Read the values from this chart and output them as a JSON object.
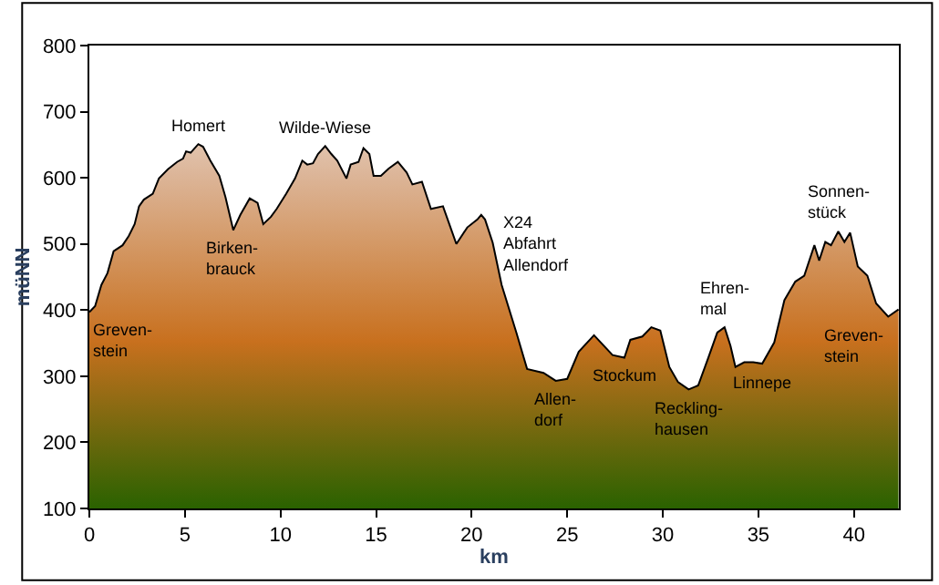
{
  "chart_data": {
    "type": "area",
    "xlabel": "km",
    "ylabel": "müNN",
    "xlim": [
      0,
      42.35
    ],
    "xticks": [
      0,
      5,
      10,
      15,
      20,
      25,
      30,
      35,
      40
    ],
    "ylim": [
      100,
      800
    ],
    "yticks": [
      100,
      200,
      300,
      400,
      500,
      600,
      700,
      800
    ],
    "marker": "none",
    "line_style": "solid",
    "series": [
      {
        "color": "#000000",
        "x": [
          0,
          0.3,
          0.63,
          0.95,
          1.27,
          1.74,
          2.06,
          2.37,
          2.6,
          2.85,
          3.32,
          3.64,
          4.11,
          4.59,
          4.9,
          5.06,
          5.3,
          5.7,
          5.95,
          6.33,
          6.8,
          7.12,
          7.53,
          7.9,
          8.39,
          8.8,
          9.1,
          9.5,
          9.8,
          10.3,
          10.76,
          11.14,
          11.4,
          11.7,
          11.96,
          12.34,
          12.66,
          12.97,
          13.45,
          13.67,
          14.08,
          14.34,
          14.65,
          14.87,
          15.25,
          15.66,
          16.14,
          16.6,
          16.9,
          17.4,
          17.87,
          18.5,
          19.2,
          19.77,
          20.3,
          20.5,
          20.7,
          21.1,
          21.57,
          22.35,
          22.9,
          23.76,
          24.4,
          25.0,
          25.6,
          26.4,
          27.37,
          27.99,
          28.3,
          28.93,
          29.4,
          29.87,
          30.34,
          30.8,
          31.35,
          31.85,
          32.38,
          32.85,
          33.23,
          33.54,
          33.8,
          34.26,
          34.73,
          35.2,
          35.83,
          36.36,
          36.93,
          37.4,
          37.93,
          38.18,
          38.5,
          38.8,
          39.18,
          39.5,
          39.8,
          40.2,
          40.7,
          41.16,
          41.79,
          42.33
        ],
        "values": [
          397,
          406,
          438,
          456,
          489,
          498,
          512,
          530,
          557,
          567,
          576,
          599,
          613,
          624,
          629,
          640,
          638,
          651,
          647,
          626,
          603,
          571,
          521,
          544,
          569,
          562,
          530,
          541,
          553,
          576,
          599,
          626,
          620,
          622,
          636,
          648,
          636,
          626,
          599,
          620,
          624,
          645,
          636,
          603,
          603,
          614,
          624,
          608,
          590,
          594,
          553,
          557,
          500,
          525,
          537,
          544,
          537,
          502,
          438,
          365,
          311,
          305,
          293,
          296,
          337,
          362,
          332,
          328,
          355,
          360,
          374,
          369,
          314,
          291,
          280,
          286,
          328,
          366,
          374,
          346,
          314,
          321,
          321,
          319,
          351,
          415,
          443,
          452,
          498,
          475,
          503,
          498,
          519,
          503,
          517,
          466,
          452,
          410,
          390,
          401
        ]
      }
    ],
    "annotations": [
      {
        "text": "Homert",
        "x": 5.7,
        "y": 651
      },
      {
        "text": "Wilde-Wiese",
        "x": 12.34,
        "y": 648
      },
      {
        "text": "Birken-\nbrauck",
        "x": 7.53,
        "y": 521
      },
      {
        "text": "Greven-\nstein",
        "x": 0,
        "y": 397
      },
      {
        "text": "X24\nAbfahrt\nAllendorf",
        "x": 21.1,
        "y": 502
      },
      {
        "text": "Allen-\ndorf",
        "x": 24.4,
        "y": 293
      },
      {
        "text": "Stockum",
        "x": 27.99,
        "y": 328
      },
      {
        "text": "Reckling-\nhausen",
        "x": 31.35,
        "y": 280
      },
      {
        "text": "Ehren-\nmal",
        "x": 33.23,
        "y": 374
      },
      {
        "text": "Linnepe",
        "x": 35.2,
        "y": 319
      },
      {
        "text": "Sonnen-\nstück",
        "x": 39.18,
        "y": 519
      },
      {
        "text": "Greven-\nstein",
        "x": 41.79,
        "y": 390
      }
    ]
  }
}
